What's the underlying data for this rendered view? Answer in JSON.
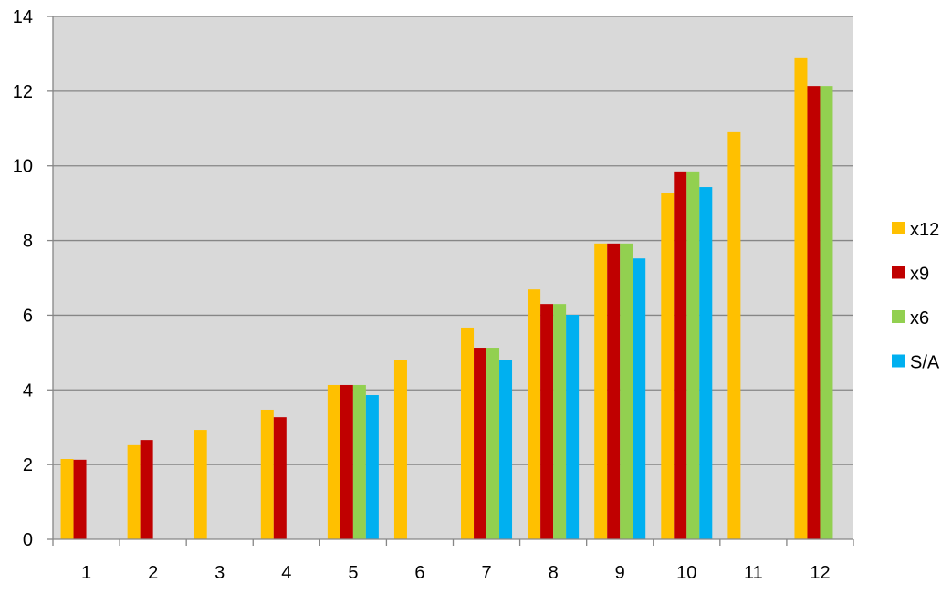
{
  "chart_data": {
    "type": "bar",
    "title": "",
    "xlabel": "",
    "ylabel": "",
    "categories": [
      "1",
      "2",
      "3",
      "4",
      "5",
      "6",
      "7",
      "8",
      "9",
      "10",
      "11",
      "12"
    ],
    "ylim": [
      0,
      14
    ],
    "yticks": [
      0,
      2,
      4,
      6,
      8,
      10,
      12,
      14
    ],
    "grid": true,
    "legend_position": "right",
    "plot_background": "#D9D9D9",
    "series": [
      {
        "name": "x12",
        "color": "#FFC000",
        "values": [
          2.15,
          2.52,
          2.93,
          3.47,
          4.13,
          4.81,
          5.67,
          6.69,
          7.92,
          9.26,
          10.9,
          12.88
        ]
      },
      {
        "name": "x9",
        "color": "#C00000",
        "values": [
          2.13,
          2.66,
          null,
          3.27,
          4.13,
          null,
          5.13,
          6.3,
          7.92,
          9.85,
          null,
          12.14
        ]
      },
      {
        "name": "x6",
        "color": "#92D050",
        "values": [
          null,
          null,
          null,
          null,
          4.13,
          null,
          5.13,
          6.3,
          7.92,
          9.85,
          null,
          12.14
        ]
      },
      {
        "name": "S/A",
        "color": "#00B0F0",
        "values": [
          null,
          null,
          null,
          null,
          3.86,
          null,
          4.81,
          6.01,
          7.52,
          9.43,
          null,
          null
        ]
      }
    ]
  }
}
